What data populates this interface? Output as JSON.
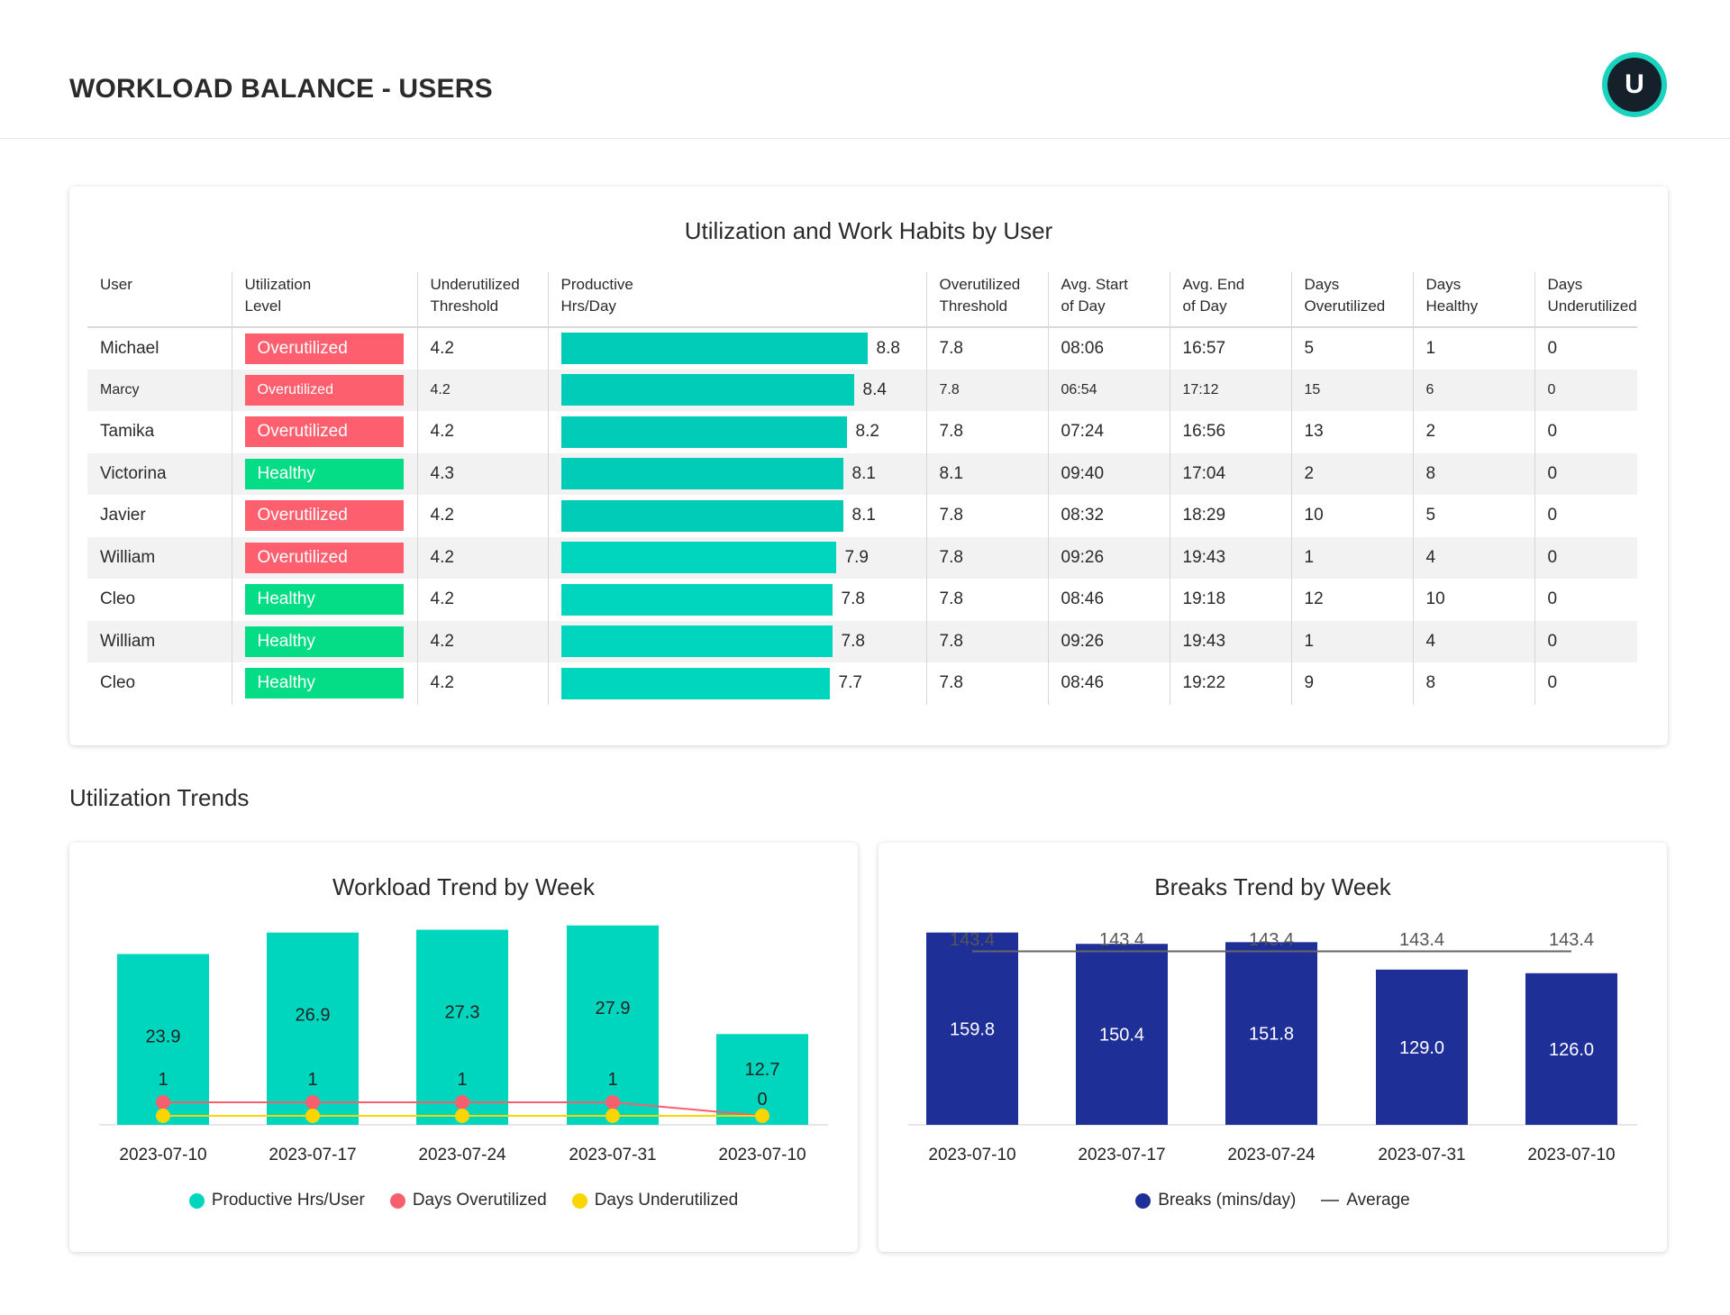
{
  "header": {
    "title": "WORKLOAD BALANCE - USERS",
    "avatar_letter": "U"
  },
  "table": {
    "title": "Utilization and Work Habits by User",
    "columns": [
      {
        "line1": "User",
        "line2": ""
      },
      {
        "line1": "Utilization",
        "line2": "Level"
      },
      {
        "line1": "Underutilized",
        "line2": "Threshold"
      },
      {
        "line1": "Productive",
        "line2": "Hrs/Day"
      },
      {
        "line1": "Overutilized",
        "line2": "Threshold"
      },
      {
        "line1": "Avg. Start",
        "line2": "of Day"
      },
      {
        "line1": "Avg. End",
        "line2": "of Day"
      },
      {
        "line1": "Days",
        "line2": "Overutilized"
      },
      {
        "line1": "Days",
        "line2": "Healthy"
      },
      {
        "line1": "Days",
        "line2": "Underutilized"
      }
    ],
    "bar_max": 8.8,
    "rows": [
      {
        "user": "Michael",
        "level": "Overutilized",
        "under": "4.2",
        "hrs": 8.8,
        "hrs_label": "8.8",
        "over": "7.8",
        "start": "08:06",
        "end": "16:57",
        "days_over": "5",
        "days_healthy": "1",
        "days_under": "0"
      },
      {
        "user": "Marcy",
        "level": "Overutilized",
        "under": "4.2",
        "hrs": 8.4,
        "hrs_label": "8.4",
        "over": "7.8",
        "start": "06:54",
        "end": "17:12",
        "days_over": "15",
        "days_healthy": "6",
        "days_under": "0"
      },
      {
        "user": "Tamika",
        "level": "Overutilized",
        "under": "4.2",
        "hrs": 8.2,
        "hrs_label": "8.2",
        "over": "7.8",
        "start": "07:24",
        "end": "16:56",
        "days_over": "13",
        "days_healthy": "2",
        "days_under": "0"
      },
      {
        "user": "Victorina",
        "level": "Healthy",
        "under": "4.3",
        "hrs": 8.1,
        "hrs_label": "8.1",
        "over": "8.1",
        "start": "09:40",
        "end": "17:04",
        "days_over": "2",
        "days_healthy": "8",
        "days_under": "0"
      },
      {
        "user": "Javier",
        "level": "Overutilized",
        "under": "4.2",
        "hrs": 8.1,
        "hrs_label": "8.1",
        "over": "7.8",
        "start": "08:32",
        "end": "18:29",
        "days_over": "10",
        "days_healthy": "5",
        "days_under": "0"
      },
      {
        "user": "William",
        "level": "Overutilized",
        "under": "4.2",
        "hrs": 7.9,
        "hrs_label": "7.9",
        "over": "7.8",
        "start": "09:26",
        "end": "19:43",
        "days_over": "1",
        "days_healthy": "4",
        "days_under": "0"
      },
      {
        "user": "Cleo",
        "level": "Healthy",
        "under": "4.2",
        "hrs": 7.8,
        "hrs_label": "7.8",
        "over": "7.8",
        "start": "08:46",
        "end": "19:18",
        "days_over": "12",
        "days_healthy": "10",
        "days_under": "0"
      },
      {
        "user": "William",
        "level": "Healthy",
        "under": "4.2",
        "hrs": 7.8,
        "hrs_label": "7.8",
        "over": "7.8",
        "start": "09:26",
        "end": "19:43",
        "days_over": "1",
        "days_healthy": "4",
        "days_under": "0"
      },
      {
        "user": "Cleo",
        "level": "Healthy",
        "under": "4.2",
        "hrs": 7.7,
        "hrs_label": "7.7",
        "over": "7.8",
        "start": "08:46",
        "end": "19:22",
        "days_over": "9",
        "days_healthy": "8",
        "days_under": "0"
      }
    ]
  },
  "section_title": "Utilization Trends",
  "colors": {
    "overutilized": "#fd5f6e",
    "healthy": "#05dd86",
    "bar": "#00d6be",
    "days_over": "#f75f6e",
    "days_under": "#fbd500",
    "breaks": "#1f2f98",
    "average": "#666666"
  },
  "chart_data": [
    {
      "type": "bar",
      "title": "Workload Trend by Week",
      "categories": [
        "2023-07-10",
        "2023-07-17",
        "2023-07-24",
        "2023-07-31",
        "2023-07-10"
      ],
      "series": [
        {
          "name": "Productive Hrs/User",
          "kind": "bar",
          "values": [
            23.9,
            26.9,
            27.3,
            27.9,
            12.7
          ]
        },
        {
          "name": "Days Overutilized",
          "kind": "line",
          "values": [
            1,
            1,
            1,
            1,
            0
          ]
        },
        {
          "name": "Days Underutilized",
          "kind": "line",
          "values": [
            0,
            0,
            0,
            0,
            0
          ]
        }
      ],
      "ylim": [
        0,
        28
      ]
    },
    {
      "type": "bar",
      "title": "Breaks Trend by Week",
      "categories": [
        "2023-07-10",
        "2023-07-17",
        "2023-07-24",
        "2023-07-31",
        "2023-07-10"
      ],
      "series": [
        {
          "name": "Breaks (mins/day)",
          "kind": "bar",
          "values": [
            159.8,
            150.4,
            151.8,
            129.0,
            126.0
          ],
          "labels": [
            "159.8",
            "150.4",
            "151.8",
            "129.0",
            "126.0"
          ]
        },
        {
          "name": "Average",
          "kind": "line",
          "values": [
            143.4,
            143.4,
            143.4,
            143.4,
            143.4
          ],
          "labels": [
            "143.4",
            "143.4",
            "143.4",
            "143.4",
            "143.4"
          ]
        }
      ],
      "ylim": [
        0,
        160
      ]
    }
  ]
}
